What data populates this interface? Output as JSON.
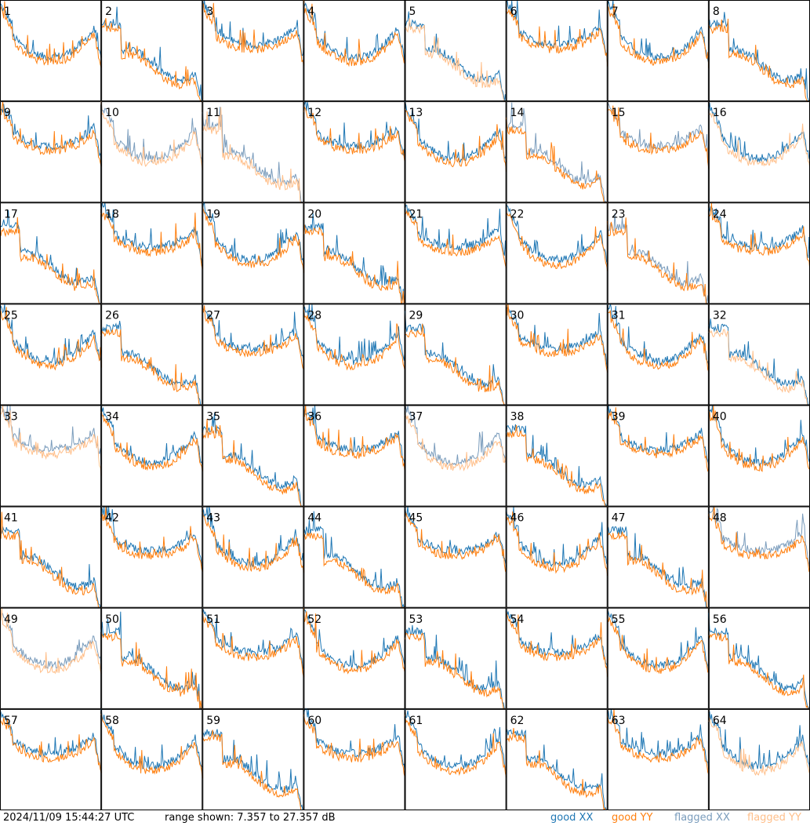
{
  "timestamp": "2024/11/09 15:44:27 UTC",
  "range_text": "range shown: 7.357 to 27.357 dB",
  "legend": {
    "good_xx": "good XX",
    "good_yy": "good YY",
    "flagged_xx": "flagged XX",
    "flagged_yy": "flagged YY"
  },
  "colors": {
    "good_xx": "#1f77b4",
    "good_yy": "#ff7f0e",
    "flagged_xx": "#7a9cbc",
    "flagged_yy": "#ffbf8a",
    "grid": "#000000"
  },
  "chart_data": {
    "type": "line",
    "layout": "8x8 small multiples of per-antenna spectra",
    "ylim": [
      7.357,
      27.357
    ],
    "unit": "dB",
    "panels": [
      {
        "id": 1,
        "xx": "good",
        "yy": "good"
      },
      {
        "id": 2,
        "xx": "good",
        "yy": "good"
      },
      {
        "id": 3,
        "xx": "good",
        "yy": "good"
      },
      {
        "id": 4,
        "xx": "good",
        "yy": "good"
      },
      {
        "id": 5,
        "xx": "good",
        "yy": "flagged"
      },
      {
        "id": 6,
        "xx": "good",
        "yy": "good"
      },
      {
        "id": 7,
        "xx": "good",
        "yy": "good"
      },
      {
        "id": 8,
        "xx": "good",
        "yy": "good"
      },
      {
        "id": 9,
        "xx": "good",
        "yy": "good"
      },
      {
        "id": 10,
        "xx": "flagged",
        "yy": "flagged"
      },
      {
        "id": 11,
        "xx": "flagged",
        "yy": "flagged"
      },
      {
        "id": 12,
        "xx": "good",
        "yy": "good"
      },
      {
        "id": 13,
        "xx": "good",
        "yy": "good"
      },
      {
        "id": 14,
        "xx": "flagged",
        "yy": "good"
      },
      {
        "id": 15,
        "xx": "flagged",
        "yy": "good"
      },
      {
        "id": 16,
        "xx": "good",
        "yy": "flagged"
      },
      {
        "id": 17,
        "xx": "good",
        "yy": "good"
      },
      {
        "id": 18,
        "xx": "good",
        "yy": "good"
      },
      {
        "id": 19,
        "xx": "good",
        "yy": "good"
      },
      {
        "id": 20,
        "xx": "good",
        "yy": "good"
      },
      {
        "id": 21,
        "xx": "good",
        "yy": "good"
      },
      {
        "id": 22,
        "xx": "good",
        "yy": "good"
      },
      {
        "id": 23,
        "xx": "flagged",
        "yy": "good"
      },
      {
        "id": 24,
        "xx": "good",
        "yy": "good"
      },
      {
        "id": 25,
        "xx": "good",
        "yy": "good"
      },
      {
        "id": 26,
        "xx": "good",
        "yy": "good"
      },
      {
        "id": 27,
        "xx": "good",
        "yy": "good"
      },
      {
        "id": 28,
        "xx": "good",
        "yy": "good"
      },
      {
        "id": 29,
        "xx": "good",
        "yy": "good"
      },
      {
        "id": 30,
        "xx": "good",
        "yy": "good"
      },
      {
        "id": 31,
        "xx": "good",
        "yy": "good"
      },
      {
        "id": 32,
        "xx": "good",
        "yy": "flagged"
      },
      {
        "id": 33,
        "xx": "flagged",
        "yy": "flagged"
      },
      {
        "id": 34,
        "xx": "good",
        "yy": "good"
      },
      {
        "id": 35,
        "xx": "good",
        "yy": "good"
      },
      {
        "id": 36,
        "xx": "good",
        "yy": "good"
      },
      {
        "id": 37,
        "xx": "flagged",
        "yy": "flagged"
      },
      {
        "id": 38,
        "xx": "good",
        "yy": "good"
      },
      {
        "id": 39,
        "xx": "good",
        "yy": "good"
      },
      {
        "id": 40,
        "xx": "good",
        "yy": "good"
      },
      {
        "id": 41,
        "xx": "good",
        "yy": "good"
      },
      {
        "id": 42,
        "xx": "good",
        "yy": "good"
      },
      {
        "id": 43,
        "xx": "good",
        "yy": "good"
      },
      {
        "id": 44,
        "xx": "good",
        "yy": "good"
      },
      {
        "id": 45,
        "xx": "good",
        "yy": "good"
      },
      {
        "id": 46,
        "xx": "good",
        "yy": "good"
      },
      {
        "id": 47,
        "xx": "good",
        "yy": "good"
      },
      {
        "id": 48,
        "xx": "flagged",
        "yy": "good"
      },
      {
        "id": 49,
        "xx": "flagged",
        "yy": "flagged"
      },
      {
        "id": 50,
        "xx": "good",
        "yy": "good"
      },
      {
        "id": 51,
        "xx": "good",
        "yy": "good"
      },
      {
        "id": 52,
        "xx": "good",
        "yy": "good"
      },
      {
        "id": 53,
        "xx": "good",
        "yy": "good"
      },
      {
        "id": 54,
        "xx": "good",
        "yy": "good"
      },
      {
        "id": 55,
        "xx": "good",
        "yy": "good"
      },
      {
        "id": 56,
        "xx": "good",
        "yy": "good"
      },
      {
        "id": 57,
        "xx": "good",
        "yy": "good"
      },
      {
        "id": 58,
        "xx": "good",
        "yy": "good"
      },
      {
        "id": 59,
        "xx": "good",
        "yy": "good"
      },
      {
        "id": 60,
        "xx": "good",
        "yy": "good"
      },
      {
        "id": 61,
        "xx": "good",
        "yy": "good"
      },
      {
        "id": 62,
        "xx": "good",
        "yy": "good"
      },
      {
        "id": 63,
        "xx": "good",
        "yy": "good"
      },
      {
        "id": 64,
        "xx": "good",
        "yy": "flagged"
      }
    ]
  }
}
